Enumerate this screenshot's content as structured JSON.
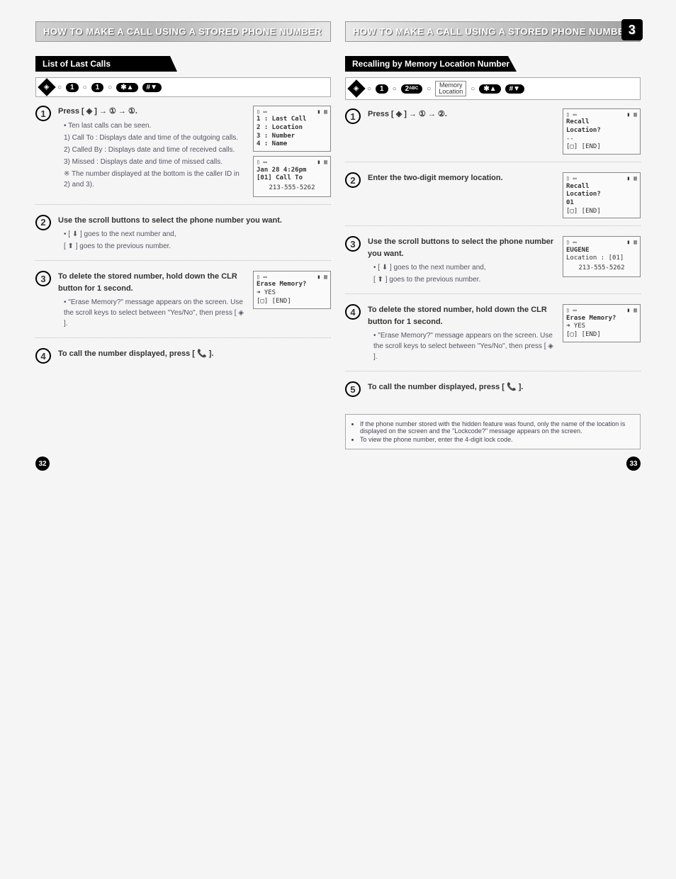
{
  "left": {
    "header": "HOW TO MAKE A CALL USING A STORED PHONE NUMBER",
    "section_title": "List of Last Calls",
    "keyseq": {
      "keys": [
        "◈",
        "1",
        "1",
        "✱▲",
        "#▼"
      ]
    },
    "steps": [
      {
        "num": "1",
        "main": "Press [ ◈ ] → ① → ①.",
        "bullets": [
          "• Ten last calls can be seen."
        ],
        "subitems": [
          "1) Call To : Displays date and time of the outgoing calls.",
          "2) Called By : Displays date and time of received calls.",
          "3) Missed : Displays date and time of missed calls.",
          "※ The number displayed at the bottom is the caller ID in 2) and 3)."
        ],
        "screen": {
          "top": [
            "▯ ▭",
            "▮ ▥"
          ],
          "lines": [
            "1 : Last Call",
            "2 : Location",
            "3 : Number",
            "4 : Name"
          ]
        },
        "screen2": {
          "top": [
            "▯ ▭",
            "▮ ▥"
          ],
          "lines": [
            "Jan 28  4:26pm",
            "[01] Call To",
            "",
            "213-555-5262"
          ]
        }
      },
      {
        "num": "2",
        "main": "Use the scroll buttons to select the phone number you want.",
        "subitems": [
          "• [ ⬇ ] goes to the next number and,",
          "  [ ⬆ ] goes to the previous number."
        ]
      },
      {
        "num": "3",
        "main": "To delete the stored number, hold down the CLR button for 1 second.",
        "subitems": [
          "• \"Erase Memory?\" message appears on the screen. Use the scroll keys to select between \"Yes/No\", then press [ ◈ ]."
        ],
        "screen": {
          "top": [
            "▯ ▭",
            "▮ ▥"
          ],
          "lines": [
            "Erase Memory?",
            "➜ YES",
            "",
            "[▢]      [END]"
          ]
        }
      },
      {
        "num": "4",
        "main": "To call the number displayed, press [ 📞 ]."
      }
    ],
    "pagenum": "32"
  },
  "right": {
    "header": "HOW TO MAKE A CALL USING A STORED PHONE NUMBER",
    "chapter": "3",
    "section_title": "Recalling by Memory Location Number",
    "keyseq": {
      "keys": [
        "◈",
        "1",
        "2",
        "Memory Location",
        "✱▲",
        "#▼"
      ],
      "mem_label_top": "Memory",
      "mem_label_bot": "Location"
    },
    "steps": [
      {
        "num": "1",
        "main": "Press [ ◈ ] → ① → ②.",
        "screen": {
          "top": [
            "▯ ▭",
            "▮ ▥"
          ],
          "lines": [
            "Recall",
            "Location?",
            "--",
            "[▢]      [END]"
          ]
        }
      },
      {
        "num": "2",
        "main": "Enter the two-digit memory location.",
        "screen": {
          "top": [
            "▯ ▭",
            "▮ ▥"
          ],
          "lines": [
            "Recall",
            "Location?",
            "01",
            "[▢]      [END]"
          ]
        }
      },
      {
        "num": "3",
        "main": "Use the scroll buttons to select the phone number you want.",
        "subitems": [
          "• [ ⬇ ] goes to the next number and,",
          "  [ ⬆ ] goes to the previous number."
        ],
        "screen": {
          "top": [
            "▯ ▭",
            "▮ ▥"
          ],
          "lines": [
            "EUGENE",
            "Location :    [01]",
            "",
            "213-555-5262"
          ]
        }
      },
      {
        "num": "4",
        "main": "To delete the stored number, hold down the CLR button for 1 second.",
        "subitems": [
          "• \"Erase Memory?\" message appears on the screen. Use the scroll keys to select between \"Yes/No\", then press [ ◈ ]."
        ],
        "screen": {
          "top": [
            "▯ ▭",
            "▮ ▥"
          ],
          "lines": [
            "Erase Memory?",
            "➜ YES",
            "",
            "[▢]      [END]"
          ]
        }
      },
      {
        "num": "5",
        "main": "To call the number displayed, press [ 📞 ]."
      }
    ],
    "notes": [
      "If the phone number stored with the hidden feature was found, only the name of the location is displayed on the screen and the \"Lockcode?\" message appears on the screen.",
      "To view the phone number, enter the 4-digit lock code."
    ],
    "pagenum": "33"
  }
}
